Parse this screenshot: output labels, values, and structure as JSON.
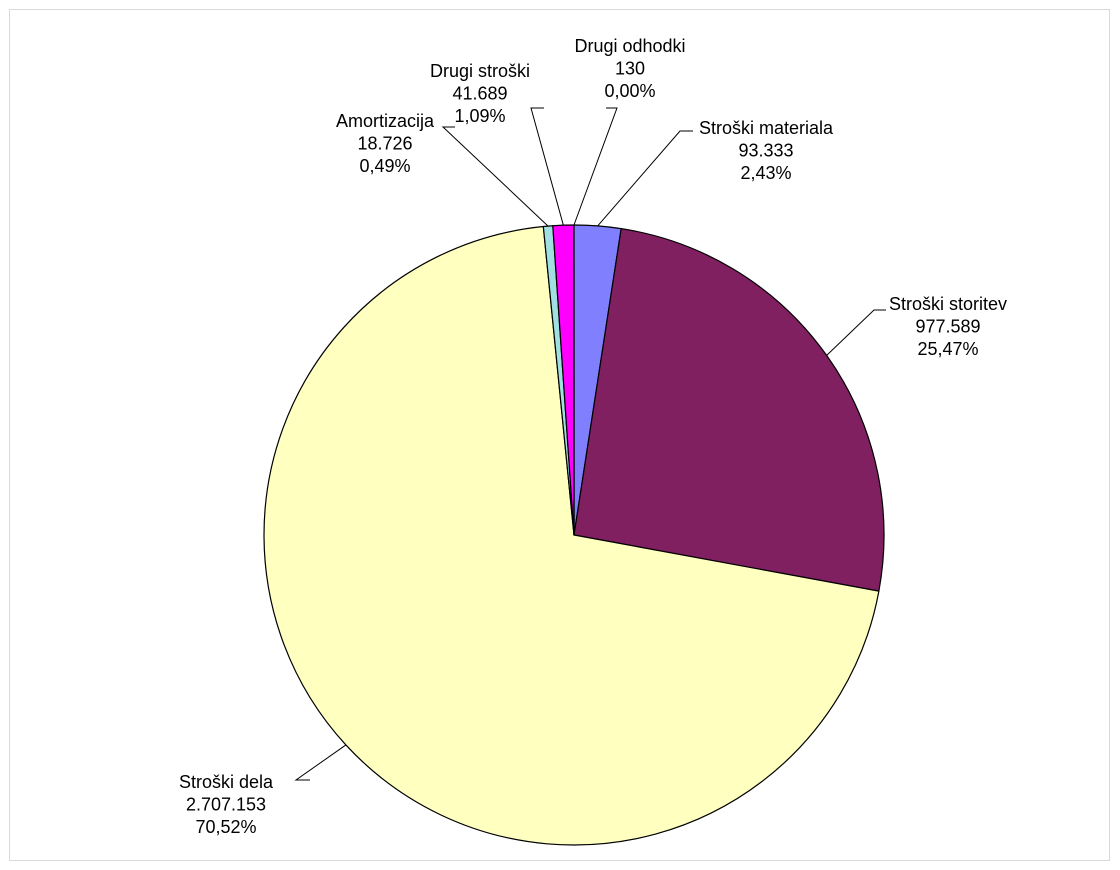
{
  "chart_data": {
    "type": "pie",
    "title": "",
    "legend": "none",
    "slices": [
      {
        "name": "Stroški materiala",
        "value": 93333,
        "value_label": "93.333",
        "percent_label": "2,43%",
        "color": "#8080ff"
      },
      {
        "name": "Stroški storitev",
        "value": 977589,
        "value_label": "977.589",
        "percent_label": "25,47%",
        "color": "#802060"
      },
      {
        "name": "Stroški dela",
        "value": 2707153,
        "value_label": "2.707.153",
        "percent_label": "70,52%",
        "color": "#ffffc0"
      },
      {
        "name": "Amortizacija",
        "value": 18726,
        "value_label": "18.726",
        "percent_label": "0,49%",
        "color": "#a0e0e0"
      },
      {
        "name": "Drugi stroški",
        "value": 41689,
        "value_label": "41.689",
        "percent_label": "1,09%",
        "color": "#ff00ff"
      },
      {
        "name": "Drugi odhodki",
        "value": 130,
        "value_label": "130",
        "percent_label": "0,00%",
        "color": "#000080"
      }
    ]
  }
}
